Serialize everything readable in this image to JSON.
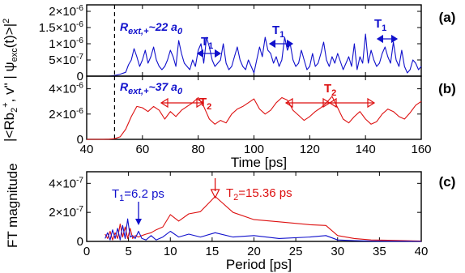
{
  "chart_data": [
    {
      "panel": "(a)",
      "type": "line",
      "ylabel": "| ψexc(t)>|²",
      "xlim": [
        40,
        160
      ],
      "ylim": [
        0,
        2.2e-06
      ],
      "yticks": [
        "0",
        "5×10⁻⁷",
        "1×10⁻⁶",
        "1.5×10⁻⁶",
        "2×10⁻⁶"
      ],
      "ytick_values": [
        0,
        5e-07,
        1e-06,
        1.5e-06,
        2e-06
      ],
      "vline_x": 50,
      "annotations": {
        "r_ext": "Rext,+~22 a0",
        "period_labels": [
          "T1",
          "T1",
          "T1"
        ]
      },
      "series": [
        {
          "color": "#1010cc",
          "x": [
            40,
            43,
            46,
            48,
            50,
            52,
            54,
            55,
            56,
            57,
            58,
            59,
            60,
            61,
            62,
            63,
            64,
            65,
            66,
            67,
            68,
            69,
            70,
            71,
            72,
            73,
            74,
            75,
            76,
            77,
            78,
            79,
            80,
            81,
            82,
            83,
            84,
            85,
            86,
            87,
            88,
            89,
            90,
            91,
            92,
            93,
            94,
            95,
            96,
            97,
            98,
            99,
            100,
            101,
            102,
            103,
            104,
            105,
            106,
            107,
            108,
            109,
            110,
            111,
            112,
            113,
            114,
            115,
            116,
            117,
            118,
            119,
            120,
            121,
            122,
            123,
            124,
            125,
            126,
            127,
            128,
            129,
            130,
            131,
            132,
            133,
            134,
            135,
            136,
            137,
            138,
            139,
            140,
            141,
            142,
            143,
            144,
            145,
            146,
            147,
            148,
            149,
            150,
            151,
            152,
            153,
            154,
            155,
            156,
            157,
            158,
            159,
            160
          ],
          "y": [
            0,
            0,
            0,
            0,
            2e-08,
            6e-08,
            1.2e-07,
            3.5e-07,
            5e-07,
            8.5e-07,
            6e-07,
            3e-07,
            5e-07,
            8e-07,
            4e-07,
            6e-07,
            9e-07,
            5e-07,
            3e-07,
            2e-07,
            3e-07,
            5e-07,
            8e-07,
            6e-07,
            3e-07,
            1.1e-06,
            7e-07,
            4e-07,
            3e-07,
            2e-07,
            5e-07,
            3e-07,
            8e-07,
            1e-06,
            4e-07,
            1.2e-06,
            9e-07,
            5e-07,
            3e-07,
            4e-07,
            5e-07,
            1e-06,
            4e-07,
            2e-07,
            3e-07,
            6e-07,
            9e-07,
            5e-07,
            3e-07,
            2e-07,
            5e-07,
            3e-07,
            1e-07,
            5e-07,
            9e-07,
            6e-07,
            1.2e-06,
            8e-07,
            7e-07,
            4e-07,
            6e-07,
            3e-07,
            5e-07,
            1.2e-06,
            8e-07,
            1e-06,
            5e-07,
            3e-07,
            4e-07,
            8e-07,
            5e-07,
            2e-07,
            3e-07,
            7e-07,
            3e-07,
            4e-07,
            7e-07,
            1.05e-06,
            5e-07,
            3e-07,
            6e-07,
            4e-07,
            7e-07,
            4.5e-07,
            2e-07,
            4e-07,
            6e-07,
            3e-07,
            1e-06,
            2e-07,
            6e-07,
            4e-07,
            1.3e-06,
            4e-07,
            8e-07,
            5e-07,
            3e-07,
            4e-07,
            7e-07,
            9e-07,
            6e-07,
            4e-07,
            1.05e-06,
            5e-07,
            3e-07,
            8e-07,
            3e-07,
            1e-07,
            2e-07,
            5e-07,
            4e-07,
            2e-07,
            3e-07
          ]
        }
      ]
    },
    {
      "panel": "(b)",
      "type": "line",
      "ylabel": "|<Rb2+, v\"",
      "xlabel": "Time  [ps]",
      "xlim": [
        40,
        160
      ],
      "xticks": [
        "40",
        "60",
        "80",
        "100",
        "120",
        "140",
        "160"
      ],
      "xtick_values": [
        40,
        60,
        80,
        100,
        120,
        140,
        160
      ],
      "ylim": [
        0,
        5e-06
      ],
      "yticks": [
        "0",
        "2×10⁻⁶",
        "4×10⁻⁶"
      ],
      "ytick_values": [
        0,
        2e-06,
        4e-06
      ],
      "vline_x": 50,
      "annotations": {
        "r_ext": "Rext,+~37 a0",
        "period_labels": [
          "T2",
          "T2"
        ]
      },
      "series": [
        {
          "color": "#dd1111",
          "x": [
            40,
            42,
            44,
            46,
            48,
            50,
            52,
            54,
            56,
            58,
            60,
            62,
            64,
            66,
            68,
            70,
            72,
            74,
            76,
            78,
            80,
            82,
            84,
            86,
            88,
            90,
            92,
            94,
            96,
            98,
            100,
            102,
            104,
            106,
            108,
            110,
            112,
            114,
            116,
            118,
            120,
            122,
            124,
            126,
            128,
            130,
            132,
            134,
            136,
            138,
            140,
            142,
            144,
            146,
            148,
            150,
            152,
            154,
            156,
            158,
            160
          ],
          "y": [
            0,
            0,
            0,
            0,
            1e-08,
            5e-08,
            2e-07,
            8e-07,
            1.8e-06,
            2.6e-06,
            2.5e-06,
            2.2e-06,
            2.6e-06,
            2.3e-06,
            1.6e-06,
            2.2e-06,
            1.8e-06,
            2.3e-06,
            2.6e-06,
            2.9e-06,
            3.3e-06,
            2.6e-06,
            1.6e-06,
            1.2e-06,
            1.5e-06,
            1.3e-06,
            2e-06,
            2.4e-06,
            2.6e-06,
            2.9e-06,
            3.2e-06,
            2.4e-06,
            2e-06,
            2.3e-06,
            2.9e-06,
            3.3e-06,
            3.1e-06,
            2.3e-06,
            1.9e-06,
            1.5e-06,
            1.8e-06,
            2.2e-06,
            2.5e-06,
            2.9e-06,
            3.4e-06,
            2.5e-06,
            1.6e-06,
            1.3e-06,
            1.8e-06,
            2.2e-06,
            1.6e-06,
            1.2e-06,
            1.4e-06,
            2e-06,
            2.4e-06,
            2.2e-06,
            1.8e-06,
            1.6e-06,
            2.1e-06,
            2.7e-06,
            3e-06
          ]
        }
      ]
    },
    {
      "panel": "(c)",
      "type": "line",
      "ylabel": "FT magnitude",
      "xlabel": "Period  [ps]",
      "xlim": [
        0,
        40
      ],
      "xticks": [
        "0",
        "5",
        "10",
        "15",
        "20",
        "25",
        "30",
        "35",
        "40"
      ],
      "xtick_values": [
        0,
        5,
        10,
        15,
        20,
        25,
        30,
        35,
        40
      ],
      "ylim": [
        0,
        4.8e-07
      ],
      "yticks": [
        "0",
        "2×10⁻⁷",
        "4×10⁻⁷"
      ],
      "ytick_values": [
        0,
        2e-07,
        4e-07
      ],
      "annotations": {
        "t1": "T1=6.2 ps",
        "t2": "T2=15.36 ps"
      },
      "series": [
        {
          "color": "#dd1111",
          "x": [
            2.2,
            2.5,
            2.8,
            3.1,
            3.4,
            3.7,
            4.0,
            4.3,
            4.6,
            4.9,
            5.2,
            5.5,
            5.8,
            6.2,
            6.6,
            7.1,
            7.7,
            8.3,
            9.1,
            10.0,
            11.0,
            12.2,
            13.6,
            15.36,
            17.5,
            20.0,
            23.0,
            26.7,
            28.6,
            30,
            32,
            34,
            36,
            38,
            40
          ],
          "y": [
            5e-08,
            2e-08,
            7e-08,
            1e-08,
            6e-08,
            2e-08,
            1.2e-07,
            3e-08,
            1e-07,
            2e-08,
            9e-08,
            2e-08,
            4e-08,
            3e-08,
            4e-08,
            5e-08,
            6e-08,
            8e-08,
            1e-07,
            1.85e-07,
            1.4e-07,
            1.9e-07,
            2.05e-07,
            3.1e-07,
            2e-07,
            1.5e-07,
            1.35e-07,
            1.15e-07,
            1.1e-07,
            4e-08,
            2e-08,
            1e-08,
            8e-09,
            5e-09,
            3e-09
          ]
        },
        {
          "color": "#1010cc",
          "x": [
            2.2,
            2.5,
            2.8,
            3.1,
            3.4,
            3.7,
            4.0,
            4.3,
            4.6,
            4.9,
            5.2,
            5.5,
            5.8,
            6.2,
            6.6,
            7.1,
            7.7,
            8.3,
            9.1,
            10.0,
            11.0,
            12.2,
            13.6,
            15.36,
            17.5,
            20.0,
            23.0,
            26.7,
            28.6,
            30,
            32,
            34,
            36,
            38,
            40
          ],
          "y": [
            2e-08,
            6e-08,
            1e-08,
            8e-08,
            2e-08,
            9e-08,
            1e-08,
            1.1e-07,
            2e-08,
            1.55e-07,
            3e-08,
            4e-08,
            2e-08,
            7e-08,
            2e-08,
            1e-08,
            4e-08,
            1e-08,
            3e-08,
            7e-08,
            3e-08,
            5e-08,
            3e-08,
            6e-08,
            3e-08,
            4e-08,
            2e-08,
            3e-08,
            4e-08,
            1e-08,
            5e-09,
            2e-09,
            1e-09,
            1e-09,
            0
          ]
        }
      ]
    }
  ]
}
